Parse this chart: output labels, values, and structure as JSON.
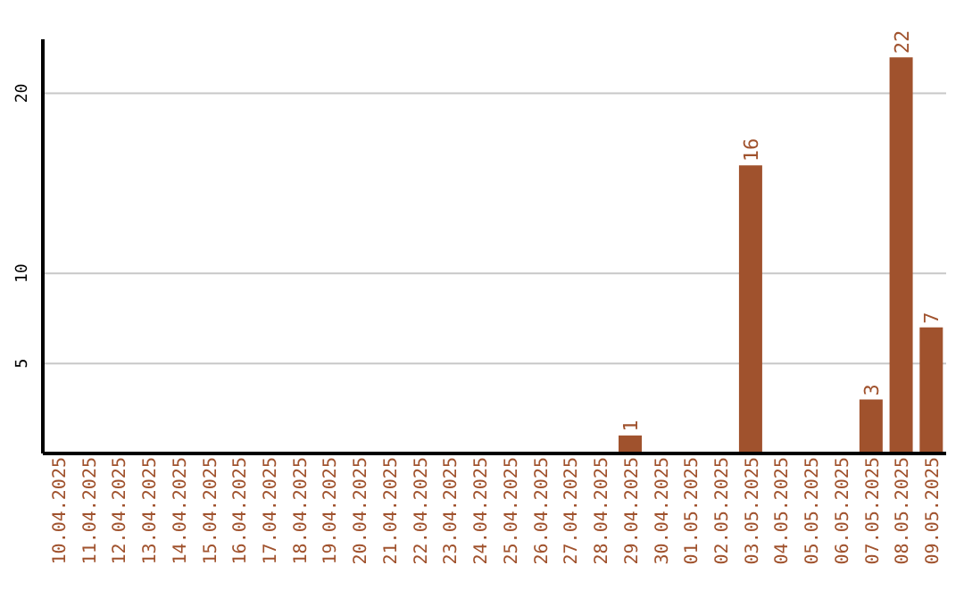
{
  "chart_data": {
    "type": "bar",
    "categories": [
      "10.04.2025",
      "11.04.2025",
      "12.04.2025",
      "13.04.2025",
      "14.04.2025",
      "15.04.2025",
      "16.04.2025",
      "17.04.2025",
      "18.04.2025",
      "19.04.2025",
      "20.04.2025",
      "21.04.2025",
      "22.04.2025",
      "23.04.2025",
      "24.04.2025",
      "25.04.2025",
      "26.04.2025",
      "27.04.2025",
      "28.04.2025",
      "29.04.2025",
      "30.04.2025",
      "01.05.2025",
      "02.05.2025",
      "03.05.2025",
      "04.05.2025",
      "05.05.2025",
      "06.05.2025",
      "07.05.2025",
      "08.05.2025",
      "09.05.2025"
    ],
    "values": [
      0,
      0,
      0,
      0,
      0,
      0,
      0,
      0,
      0,
      0,
      0,
      0,
      0,
      0,
      0,
      0,
      0,
      0,
      0,
      1,
      0,
      0,
      0,
      16,
      0,
      0,
      0,
      3,
      22,
      7
    ],
    "value_labels": [
      null,
      null,
      null,
      null,
      null,
      null,
      null,
      null,
      null,
      null,
      null,
      null,
      null,
      null,
      null,
      null,
      null,
      null,
      null,
      "1",
      null,
      null,
      null,
      "16",
      null,
      null,
      null,
      "3",
      "22",
      "7"
    ],
    "color": "#a0522d",
    "ylim": [
      0,
      23
    ],
    "yticks": [
      5,
      10,
      20
    ],
    "grid": "y"
  }
}
